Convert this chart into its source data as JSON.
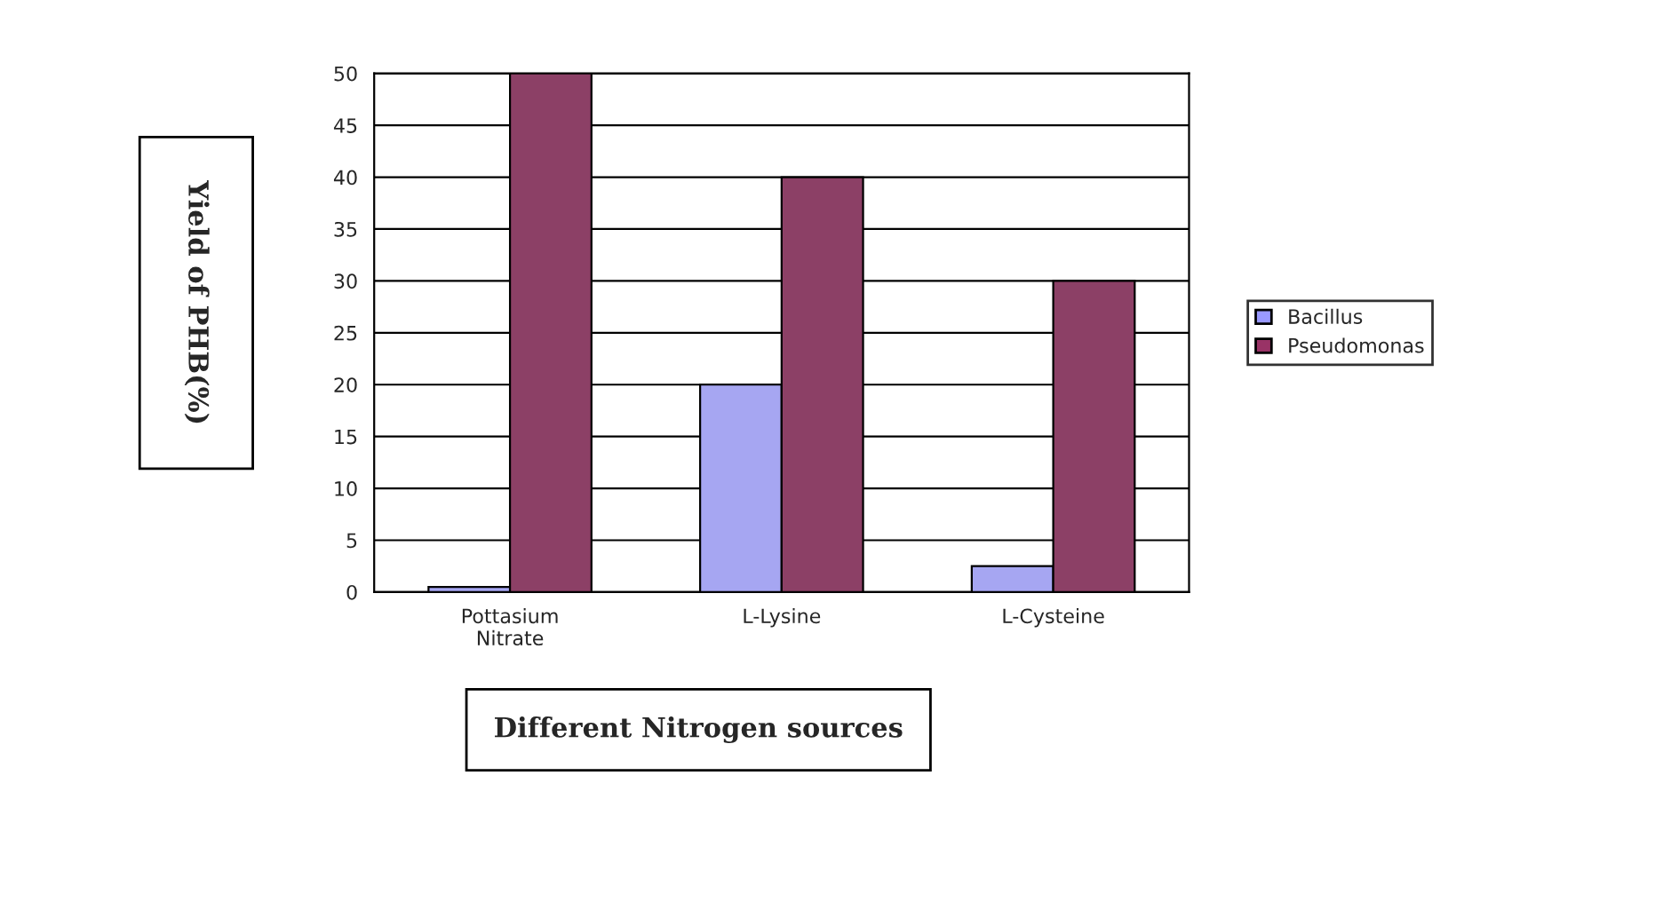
{
  "chart_data": {
    "type": "bar",
    "categories": [
      "Pottasium\nNitrate",
      "L-Lysine",
      "L-Cysteine"
    ],
    "series": [
      {
        "name": "Bacillus",
        "color": "#9999ff",
        "values": [
          0.5,
          20,
          2.5
        ]
      },
      {
        "name": "Pseudomonas",
        "color": "#993366",
        "values": [
          50,
          40,
          30
        ]
      }
    ],
    "xlabel": "Different Nitrogen sources",
    "ylabel": "Yield of PHB(%)",
    "ylim": [
      0,
      50
    ],
    "yticks": [
      0,
      5,
      10,
      15,
      20,
      25,
      30,
      35,
      40,
      45,
      50
    ],
    "grid": "y",
    "legend": "right"
  }
}
